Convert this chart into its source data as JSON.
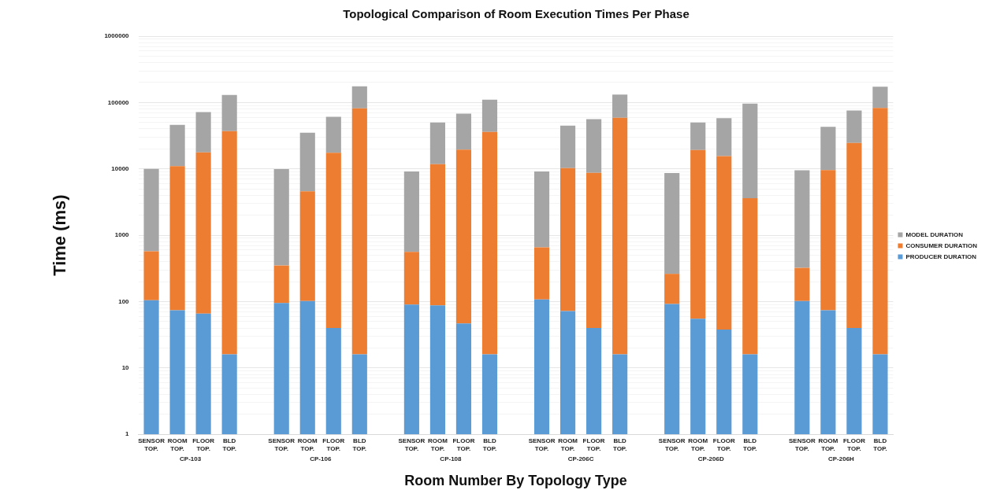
{
  "chart_data": {
    "type": "bar",
    "title": "Topological Comparison of Room Execution Times Per Phase",
    "xlabel": "Room Number By Topology Type",
    "ylabel": "Time (ms)",
    "categories": [
      "SENSOR TOP.",
      "ROOM TOP.",
      "FLOOR TOP.",
      "BLD TOP.",
      null,
      "SENSOR TOP.",
      "ROOM TOP.",
      "FLOOR TOP.",
      "BLD TOP.",
      null,
      "SENSOR TOP.",
      "ROOM TOP.",
      "FLOOR TOP.",
      "BLD TOP.",
      null,
      "SENSOR TOP.",
      "ROOM TOP.",
      "FLOOR TOP.",
      "BLD TOP.",
      null,
      "SENSOR TOP.",
      "ROOM TOP.",
      "FLOOR TOP.",
      "BLD TOP.",
      null,
      "SENSOR TOP.",
      "ROOM TOP.",
      "FLOOR TOP.",
      "BLD TOP."
    ],
    "annotations": [
      "CP-103",
      "CP-106",
      "CP-108",
      "CP-206C",
      "CP-206D",
      "CP-206H"
    ],
    "stacked": true,
    "log": "y",
    "grid": "y",
    "legend": "right",
    "series": [
      {
        "name": "PRODUCER DURATION",
        "color": "#5b9bd5",
        "values": [
          105,
          74,
          66,
          16,
          null,
          95,
          102,
          40,
          16,
          null,
          90,
          88,
          47,
          16,
          null,
          108,
          72,
          40,
          16,
          null,
          92,
          55,
          38,
          16,
          null,
          102,
          74,
          40,
          16
        ]
      },
      {
        "name": "CONSUMER DURATION",
        "color": "#ed7d31",
        "values": [
          470,
          10900,
          17700,
          37000,
          null,
          255,
          4500,
          17500,
          82000,
          null,
          470,
          11700,
          19500,
          36000,
          null,
          550,
          10200,
          8660,
          59000,
          null,
          170,
          19200,
          15500,
          3600,
          null,
          220,
          9500,
          24600,
          83000
        ]
      },
      {
        "name": "MODEL DURATION",
        "color": "#a5a5a5",
        "values": [
          9400,
          35000,
          54000,
          93000,
          null,
          9600,
          30400,
          43500,
          93000,
          null,
          8600,
          38200,
          48500,
          74000,
          null,
          8500,
          34700,
          47300,
          73000,
          null,
          8400,
          30700,
          42500,
          93000,
          null,
          9200,
          33400,
          51400,
          90000
        ]
      }
    ],
    "ylim": [
      1,
      1000000
    ],
    "yticks": [
      1,
      {
        "value": 2,
        "label": null
      },
      {
        "value": 3,
        "label": null
      },
      {
        "value": 4,
        "label": null
      },
      {
        "value": 5,
        "label": null
      },
      {
        "value": 6,
        "label": null
      },
      {
        "value": 7,
        "label": null
      },
      {
        "value": 8,
        "label": null
      },
      {
        "value": 9,
        "label": null
      },
      10,
      {
        "value": 20,
        "label": null
      },
      {
        "value": 30,
        "label": null
      },
      {
        "value": 40,
        "label": null
      },
      {
        "value": 50,
        "label": null
      },
      {
        "value": 60,
        "label": null
      },
      {
        "value": 70,
        "label": null
      },
      {
        "value": 80,
        "label": null
      },
      {
        "value": 90,
        "label": null
      },
      100,
      {
        "value": 200,
        "label": null
      },
      {
        "value": 300,
        "label": null
      },
      {
        "value": 400,
        "label": null
      },
      {
        "value": 500,
        "label": null
      },
      {
        "value": 600,
        "label": null
      },
      {
        "value": 700,
        "label": null
      },
      {
        "value": 800,
        "label": null
      },
      {
        "value": 900,
        "label": null
      },
      1000,
      {
        "value": 2000,
        "label": null
      },
      {
        "value": 3000,
        "label": null
      },
      {
        "value": 4000,
        "label": null
      },
      {
        "value": 5000,
        "label": null
      },
      {
        "value": 6000,
        "label": null
      },
      {
        "value": 7000,
        "label": null
      },
      {
        "value": 8000,
        "label": null
      },
      {
        "value": 9000,
        "label": null
      },
      10000,
      {
        "value": 20000,
        "label": null
      },
      {
        "value": 30000,
        "label": null
      },
      {
        "value": 40000,
        "label": null
      },
      {
        "value": 50000,
        "label": null
      },
      {
        "value": 60000,
        "label": null
      },
      {
        "value": 70000,
        "label": null
      },
      {
        "value": 80000,
        "label": null
      },
      {
        "value": 90000,
        "label": null
      },
      100000,
      {
        "value": 200000,
        "label": null
      },
      {
        "value": 300000,
        "label": null
      },
      {
        "value": 400000,
        "label": null
      },
      {
        "value": 500000,
        "label": null
      },
      {
        "value": 600000,
        "label": null
      },
      {
        "value": 700000,
        "label": null
      },
      {
        "value": 800000,
        "label": null
      },
      {
        "value": 900000,
        "label": null
      },
      1000000
    ]
  }
}
